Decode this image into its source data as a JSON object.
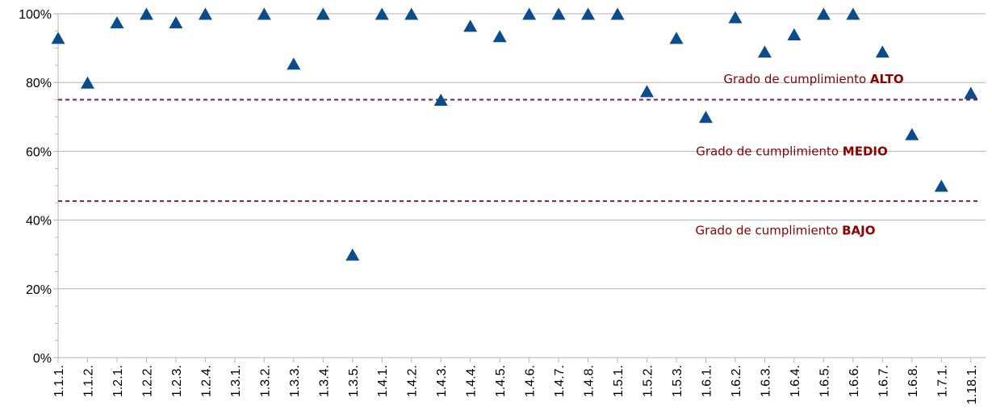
{
  "chart_data": {
    "type": "scatter",
    "title": "",
    "xlabel": "",
    "ylabel": "",
    "ylim": [
      0,
      100
    ],
    "y_ticks": [
      "0%",
      "20%",
      "40%",
      "60%",
      "80%",
      "100%"
    ],
    "y_tick_values": [
      0,
      20,
      40,
      60,
      80,
      100
    ],
    "grid": "horizontal",
    "marker": "triangle",
    "marker_color": "#0b4d8c",
    "categories": [
      "1.1.1.",
      "1.1.2.",
      "1.2.1.",
      "1.2.2.",
      "1.2.3.",
      "1.2.4.",
      "1.3.1.",
      "1.3.2.",
      "1.3.3.",
      "1.3.4.",
      "1.3.5.",
      "1.4.1.",
      "1.4.2.",
      "1.4.3.",
      "1.4.4.",
      "1.4.5.",
      "1.4.6.",
      "1.4.7.",
      "1.4.8.",
      "1.5.1.",
      "1.5.2.",
      "1.5.3.",
      "1.6.1.",
      "1.6.2.",
      "1.6.3.",
      "1.6.4.",
      "1.6.5.",
      "1.6.6.",
      "1.6.7.",
      "1.6.8.",
      "1.7.1.",
      "1.18.1."
    ],
    "values": [
      93,
      80,
      97.5,
      100,
      97.5,
      100,
      null,
      100,
      85.5,
      100,
      30,
      100,
      100,
      75,
      96.5,
      93.5,
      100,
      100,
      100,
      100,
      77.5,
      93,
      70,
      99,
      89,
      94,
      100,
      100,
      89,
      65,
      50,
      77
    ],
    "thresholds": [
      {
        "value": 75,
        "color": "#7b1f4f",
        "style": "dashed"
      },
      {
        "value": 45.5,
        "color": "#7b1f4f",
        "style": "dashed"
      }
    ],
    "annotations": [
      {
        "prefix": "Grado de cumplimiento ",
        "strong": "ALTO",
        "y": 81,
        "color": "#8b0000"
      },
      {
        "prefix": "Grado de cumplimiento ",
        "strong": "MEDIO",
        "y": 60,
        "color": "#8b0000"
      },
      {
        "prefix": "Grado de cumplimiento ",
        "strong": "BAJO",
        "y": 37,
        "color": "#8b0000"
      }
    ]
  }
}
